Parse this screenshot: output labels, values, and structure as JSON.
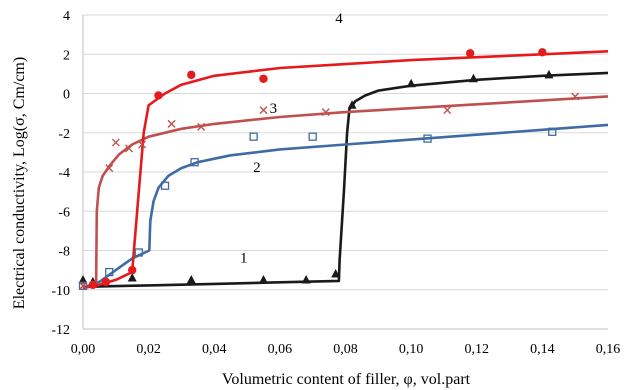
{
  "chart_data": {
    "type": "scatter",
    "title": "",
    "xlabel": "Volumetric content of filler, φ, vol.part",
    "ylabel": "Electrical conductivity, Log(σ, Cm/cm)",
    "xlim": [
      0,
      0.16
    ],
    "ylim": [
      -12,
      4
    ],
    "x_ticks": [
      0,
      0.02,
      0.04,
      0.06,
      0.08,
      0.1,
      0.12,
      0.14,
      0.16
    ],
    "x_tick_labels": [
      "0,00",
      "0,02",
      "0,04",
      "0,06",
      "0,08",
      "0,10",
      "0,12",
      "0,14",
      "0,16"
    ],
    "y_ticks": [
      -12,
      -10,
      -8,
      -6,
      -4,
      -2,
      0,
      2,
      4
    ],
    "y_tick_labels": [
      "-12",
      "-10",
      "-8",
      "-6",
      "-4",
      "-2",
      "0",
      "2",
      "4"
    ],
    "grid": "horizontal major gridlines",
    "legend": "none; curves labeled inline with numbers 1–4",
    "series": [
      {
        "name": "1",
        "color": "#1a1a1a",
        "marker": "triangle",
        "points": [
          [
            0.0,
            -9.5
          ],
          [
            0.003,
            -9.6
          ],
          [
            0.015,
            -9.4
          ],
          [
            0.033,
            -9.5
          ],
          [
            0.055,
            -9.5
          ],
          [
            0.068,
            -9.5
          ],
          [
            0.077,
            -9.2
          ],
          [
            0.082,
            -0.6
          ],
          [
            0.1,
            0.5
          ],
          [
            0.119,
            0.75
          ],
          [
            0.142,
            0.95
          ]
        ],
        "fit": [
          [
            0.0,
            -9.85
          ],
          [
            0.02,
            -9.78
          ],
          [
            0.04,
            -9.7
          ],
          [
            0.06,
            -9.62
          ],
          [
            0.078,
            -9.55
          ],
          [
            0.0782,
            -8.5
          ],
          [
            0.0795,
            -5.0
          ],
          [
            0.0805,
            -2.0
          ],
          [
            0.0812,
            -0.8
          ],
          [
            0.083,
            -0.4
          ],
          [
            0.086,
            -0.1
          ],
          [
            0.09,
            0.15
          ],
          [
            0.1,
            0.4
          ],
          [
            0.12,
            0.7
          ],
          [
            0.14,
            0.9
          ],
          [
            0.16,
            1.05
          ]
        ]
      },
      {
        "name": "2",
        "color": "#3f6ba5",
        "marker": "square",
        "points": [
          [
            0.0,
            -9.8
          ],
          [
            0.008,
            -9.1
          ],
          [
            0.017,
            -8.1
          ],
          [
            0.025,
            -4.7
          ],
          [
            0.034,
            -3.5
          ],
          [
            0.052,
            -2.2
          ],
          [
            0.07,
            -2.2
          ],
          [
            0.105,
            -2.3
          ],
          [
            0.143,
            -1.95
          ]
        ],
        "fit": [
          [
            0.0,
            -9.9
          ],
          [
            0.005,
            -9.6
          ],
          [
            0.01,
            -9.0
          ],
          [
            0.015,
            -8.4
          ],
          [
            0.0202,
            -8.0
          ],
          [
            0.0205,
            -6.5
          ],
          [
            0.0215,
            -5.5
          ],
          [
            0.023,
            -4.8
          ],
          [
            0.026,
            -4.2
          ],
          [
            0.03,
            -3.8
          ],
          [
            0.035,
            -3.5
          ],
          [
            0.045,
            -3.15
          ],
          [
            0.06,
            -2.85
          ],
          [
            0.08,
            -2.6
          ],
          [
            0.1,
            -2.35
          ],
          [
            0.12,
            -2.1
          ],
          [
            0.14,
            -1.85
          ],
          [
            0.16,
            -1.6
          ]
        ]
      },
      {
        "name": "3",
        "color": "#c0504d",
        "marker": "x",
        "points": [
          [
            0.0,
            -9.8
          ],
          [
            0.008,
            -3.8
          ],
          [
            0.01,
            -2.5
          ],
          [
            0.014,
            -2.8
          ],
          [
            0.018,
            -2.6
          ],
          [
            0.027,
            -1.55
          ],
          [
            0.036,
            -1.7
          ],
          [
            0.055,
            -0.85
          ],
          [
            0.074,
            -0.95
          ],
          [
            0.111,
            -0.85
          ],
          [
            0.15,
            -0.15
          ]
        ],
        "fit": [
          [
            0.0,
            -9.9
          ],
          [
            0.004,
            -9.8
          ],
          [
            0.0042,
            -6.0
          ],
          [
            0.0048,
            -4.8
          ],
          [
            0.006,
            -4.2
          ],
          [
            0.008,
            -3.7
          ],
          [
            0.011,
            -3.1
          ],
          [
            0.015,
            -2.6
          ],
          [
            0.02,
            -2.2
          ],
          [
            0.03,
            -1.8
          ],
          [
            0.04,
            -1.55
          ],
          [
            0.06,
            -1.2
          ],
          [
            0.08,
            -0.95
          ],
          [
            0.1,
            -0.75
          ],
          [
            0.12,
            -0.55
          ],
          [
            0.14,
            -0.35
          ],
          [
            0.16,
            -0.15
          ]
        ]
      },
      {
        "name": "4",
        "color": "#e41a1c",
        "marker": "circle",
        "points": [
          [
            0.003,
            -9.75
          ],
          [
            0.007,
            -9.6
          ],
          [
            0.015,
            -9.0
          ],
          [
            0.023,
            -0.1
          ],
          [
            0.033,
            0.95
          ],
          [
            0.055,
            0.75
          ],
          [
            0.118,
            2.05
          ],
          [
            0.14,
            2.1
          ]
        ],
        "fit": [
          [
            0.0,
            -9.9
          ],
          [
            0.005,
            -9.75
          ],
          [
            0.01,
            -9.5
          ],
          [
            0.015,
            -9.1
          ],
          [
            0.0155,
            -8.0
          ],
          [
            0.017,
            -5.0
          ],
          [
            0.0185,
            -2.0
          ],
          [
            0.02,
            -0.6
          ],
          [
            0.025,
            0.0
          ],
          [
            0.03,
            0.45
          ],
          [
            0.04,
            0.9
          ],
          [
            0.06,
            1.3
          ],
          [
            0.08,
            1.5
          ],
          [
            0.1,
            1.7
          ],
          [
            0.12,
            1.85
          ],
          [
            0.14,
            2.0
          ],
          [
            0.16,
            2.15
          ]
        ]
      }
    ],
    "annotations": [
      {
        "text": "1",
        "x": 0.049,
        "y": -8.6
      },
      {
        "text": "2",
        "x": 0.053,
        "y": -4.0
      },
      {
        "text": "3",
        "x": 0.058,
        "y": -1.0
      },
      {
        "text": "4",
        "x": 0.078,
        "y": 3.6
      }
    ]
  }
}
